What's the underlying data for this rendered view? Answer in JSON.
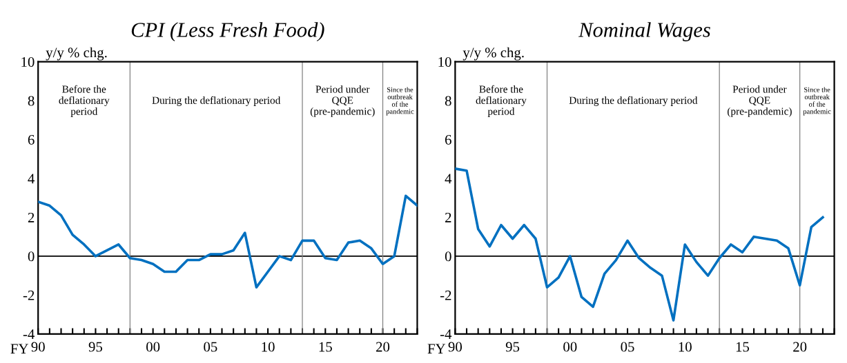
{
  "chart_data": [
    {
      "type": "line",
      "title": "CPI (Less Fresh Food)",
      "ylabel": "y/y % chg.",
      "xlabel": "FY",
      "x": [
        1990,
        1991,
        1992,
        1993,
        1994,
        1995,
        1996,
        1997,
        1998,
        1999,
        2000,
        2001,
        2002,
        2003,
        2004,
        2005,
        2006,
        2007,
        2008,
        2009,
        2010,
        2011,
        2012,
        2013,
        2014,
        2015,
        2016,
        2017,
        2018,
        2019,
        2020,
        2021,
        2022,
        2023
      ],
      "series": [
        {
          "color": "#0070c0",
          "values": [
            2.8,
            2.6,
            2.1,
            1.1,
            0.6,
            0.0,
            0.3,
            0.6,
            -0.1,
            -0.2,
            -0.4,
            -0.8,
            -0.8,
            -0.2,
            -0.2,
            0.1,
            0.1,
            0.3,
            1.2,
            -1.6,
            -0.8,
            0.0,
            -0.2,
            0.8,
            0.8,
            -0.1,
            -0.2,
            0.7,
            0.8,
            0.4,
            -0.4,
            0.0,
            3.1,
            2.6
          ]
        }
      ],
      "xlim": [
        1990,
        2023
      ],
      "ylim": [
        -4,
        10
      ],
      "yticks": [
        -4,
        -2,
        0,
        2,
        4,
        6,
        8,
        10
      ],
      "xticks": [
        {
          "value": 1990,
          "label": "90"
        },
        {
          "value": 1991,
          "label": null
        },
        {
          "value": 1992,
          "label": null
        },
        {
          "value": 1993,
          "label": null
        },
        {
          "value": 1994,
          "label": null
        },
        {
          "value": 1995,
          "label": "95"
        },
        {
          "value": 1996,
          "label": null
        },
        {
          "value": 1997,
          "label": null
        },
        {
          "value": 1998,
          "label": null
        },
        {
          "value": 1999,
          "label": null
        },
        {
          "value": 2000,
          "label": "00"
        },
        {
          "value": 2001,
          "label": null
        },
        {
          "value": 2002,
          "label": null
        },
        {
          "value": 2003,
          "label": null
        },
        {
          "value": 2004,
          "label": null
        },
        {
          "value": 2005,
          "label": "05"
        },
        {
          "value": 2006,
          "label": null
        },
        {
          "value": 2007,
          "label": null
        },
        {
          "value": 2008,
          "label": null
        },
        {
          "value": 2009,
          "label": null
        },
        {
          "value": 2010,
          "label": "10"
        },
        {
          "value": 2011,
          "label": null
        },
        {
          "value": 2012,
          "label": null
        },
        {
          "value": 2013,
          "label": null
        },
        {
          "value": 2014,
          "label": null
        },
        {
          "value": 2015,
          "label": "15"
        },
        {
          "value": 2016,
          "label": null
        },
        {
          "value": 2017,
          "label": null
        },
        {
          "value": 2018,
          "label": null
        },
        {
          "value": 2019,
          "label": null
        },
        {
          "value": 2020,
          "label": "20"
        },
        {
          "value": 2021,
          "label": null
        },
        {
          "value": 2022,
          "label": null
        },
        {
          "value": 2023,
          "label": null
        }
      ],
      "ref_lines": [
        {
          "axis": "y",
          "value": 0,
          "color": "#000000"
        },
        {
          "axis": "x",
          "value": 1998,
          "color": "#808080"
        },
        {
          "axis": "x",
          "value": 2013,
          "color": "#808080"
        },
        {
          "axis": "x",
          "value": 2020,
          "color": "#808080"
        }
      ],
      "annotations": [
        "Before the\ndeflationary\nperiod",
        "During the deflationary period",
        "Period under\nQQE\n(pre-pandemic)",
        "Since the\noutbreak\nof the\npandemic"
      ],
      "grid": false,
      "legend": false,
      "marker": "none",
      "line_style": "solid"
    },
    {
      "type": "line",
      "title": "Nominal Wages",
      "ylabel": "y/y % chg.",
      "xlabel": "FY",
      "x": [
        1990,
        1991,
        1992,
        1993,
        1994,
        1995,
        1996,
        1997,
        1998,
        1999,
        2000,
        2001,
        2002,
        2003,
        2004,
        2005,
        2006,
        2007,
        2008,
        2009,
        2010,
        2011,
        2012,
        2013,
        2014,
        2015,
        2016,
        2017,
        2018,
        2019,
        2020,
        2021,
        2022
      ],
      "series": [
        {
          "color": "#0070c0",
          "values": [
            4.5,
            4.4,
            1.4,
            0.5,
            1.6,
            0.9,
            1.6,
            0.9,
            -1.6,
            -1.1,
            0.0,
            -2.1,
            -2.6,
            -0.9,
            -0.2,
            0.8,
            -0.1,
            -0.6,
            -1.0,
            -3.3,
            0.6,
            -0.3,
            -1.0,
            -0.1,
            0.6,
            0.2,
            1.0,
            0.9,
            0.8,
            0.4,
            -1.5,
            1.5,
            2.0
          ]
        }
      ],
      "xlim": [
        1990,
        2023
      ],
      "ylim": [
        -4,
        10
      ],
      "yticks": [
        -4,
        -2,
        0,
        2,
        4,
        6,
        8,
        10
      ],
      "xticks": [
        {
          "value": 1990,
          "label": "90"
        },
        {
          "value": 1991,
          "label": null
        },
        {
          "value": 1992,
          "label": null
        },
        {
          "value": 1993,
          "label": null
        },
        {
          "value": 1994,
          "label": null
        },
        {
          "value": 1995,
          "label": "95"
        },
        {
          "value": 1996,
          "label": null
        },
        {
          "value": 1997,
          "label": null
        },
        {
          "value": 1998,
          "label": null
        },
        {
          "value": 1999,
          "label": null
        },
        {
          "value": 2000,
          "label": "00"
        },
        {
          "value": 2001,
          "label": null
        },
        {
          "value": 2002,
          "label": null
        },
        {
          "value": 2003,
          "label": null
        },
        {
          "value": 2004,
          "label": null
        },
        {
          "value": 2005,
          "label": "05"
        },
        {
          "value": 2006,
          "label": null
        },
        {
          "value": 2007,
          "label": null
        },
        {
          "value": 2008,
          "label": null
        },
        {
          "value": 2009,
          "label": null
        },
        {
          "value": 2010,
          "label": "10"
        },
        {
          "value": 2011,
          "label": null
        },
        {
          "value": 2012,
          "label": null
        },
        {
          "value": 2013,
          "label": null
        },
        {
          "value": 2014,
          "label": null
        },
        {
          "value": 2015,
          "label": "15"
        },
        {
          "value": 2016,
          "label": null
        },
        {
          "value": 2017,
          "label": null
        },
        {
          "value": 2018,
          "label": null
        },
        {
          "value": 2019,
          "label": null
        },
        {
          "value": 2020,
          "label": "20"
        },
        {
          "value": 2021,
          "label": null
        },
        {
          "value": 2022,
          "label": null
        },
        {
          "value": 2023,
          "label": null
        }
      ],
      "ref_lines": [
        {
          "axis": "y",
          "value": 0,
          "color": "#000000"
        },
        {
          "axis": "x",
          "value": 1998,
          "color": "#808080"
        },
        {
          "axis": "x",
          "value": 2013,
          "color": "#808080"
        },
        {
          "axis": "x",
          "value": 2020,
          "color": "#808080"
        }
      ],
      "annotations": [
        "Before the\ndeflationary\nperiod",
        "During the deflationary period",
        "Period under\nQQE\n(pre-pandemic)",
        "Since the\noutbreak\nof the\npandemic"
      ],
      "grid": false,
      "legend": false,
      "marker": "none",
      "line_style": "solid"
    }
  ]
}
